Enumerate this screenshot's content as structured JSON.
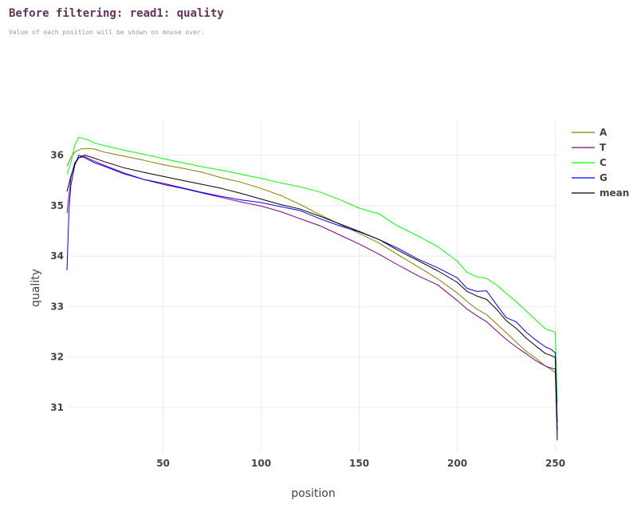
{
  "header": {
    "title": "Before filtering: read1: quality",
    "subtitle": "Value of each position will be shown on mouse over."
  },
  "chart_data": {
    "type": "line",
    "xlabel": "position",
    "ylabel": "quality",
    "xlim": [
      1,
      251
    ],
    "ylim": [
      30.2,
      36.7
    ],
    "xticks": [
      50,
      100,
      150,
      200,
      250
    ],
    "yticks": [
      31,
      32,
      33,
      34,
      35,
      36
    ],
    "grid": true,
    "legend": "right",
    "series": [
      {
        "name": "A",
        "color": "#808000",
        "points": [
          [
            1,
            35.78
          ],
          [
            3,
            35.95
          ],
          [
            5,
            36.06
          ],
          [
            8,
            36.12
          ],
          [
            10,
            36.13
          ],
          [
            12,
            36.13
          ],
          [
            15,
            36.12
          ],
          [
            20,
            36.06
          ],
          [
            30,
            35.98
          ],
          [
            40,
            35.9
          ],
          [
            50,
            35.81
          ],
          [
            60,
            35.74
          ],
          [
            70,
            35.66
          ],
          [
            80,
            35.55
          ],
          [
            90,
            35.46
          ],
          [
            100,
            35.34
          ],
          [
            110,
            35.2
          ],
          [
            120,
            35.02
          ],
          [
            130,
            34.82
          ],
          [
            140,
            34.63
          ],
          [
            150,
            34.45
          ],
          [
            160,
            34.26
          ],
          [
            170,
            34.02
          ],
          [
            180,
            33.79
          ],
          [
            190,
            33.55
          ],
          [
            200,
            33.27
          ],
          [
            205,
            33.1
          ],
          [
            210,
            32.95
          ],
          [
            215,
            32.84
          ],
          [
            220,
            32.66
          ],
          [
            225,
            32.48
          ],
          [
            230,
            32.3
          ],
          [
            235,
            32.12
          ],
          [
            240,
            31.98
          ],
          [
            245,
            31.82
          ],
          [
            248,
            31.75
          ],
          [
            250,
            31.69
          ],
          [
            251,
            30.44
          ]
        ]
      },
      {
        "name": "T",
        "color": "#800080",
        "points": [
          [
            1,
            34.85
          ],
          [
            2,
            35.2
          ],
          [
            3,
            35.55
          ],
          [
            5,
            35.85
          ],
          [
            7,
            35.95
          ],
          [
            10,
            35.97
          ],
          [
            15,
            35.88
          ],
          [
            20,
            35.8
          ],
          [
            30,
            35.65
          ],
          [
            40,
            35.52
          ],
          [
            50,
            35.42
          ],
          [
            60,
            35.34
          ],
          [
            70,
            35.25
          ],
          [
            80,
            35.16
          ],
          [
            90,
            35.07
          ],
          [
            100,
            34.99
          ],
          [
            110,
            34.88
          ],
          [
            120,
            34.74
          ],
          [
            130,
            34.6
          ],
          [
            140,
            34.42
          ],
          [
            150,
            34.24
          ],
          [
            160,
            34.04
          ],
          [
            170,
            33.82
          ],
          [
            180,
            33.61
          ],
          [
            190,
            33.43
          ],
          [
            200,
            33.12
          ],
          [
            205,
            32.95
          ],
          [
            210,
            32.82
          ],
          [
            215,
            32.7
          ],
          [
            220,
            32.52
          ],
          [
            225,
            32.35
          ],
          [
            230,
            32.2
          ],
          [
            235,
            32.07
          ],
          [
            240,
            31.93
          ],
          [
            245,
            31.82
          ],
          [
            248,
            31.78
          ],
          [
            250,
            31.76
          ],
          [
            251,
            30.55
          ]
        ]
      },
      {
        "name": "C",
        "color": "#00ff00",
        "points": [
          [
            1,
            35.62
          ],
          [
            3,
            35.85
          ],
          [
            5,
            36.2
          ],
          [
            7,
            36.35
          ],
          [
            10,
            36.32
          ],
          [
            12,
            36.3
          ],
          [
            15,
            36.24
          ],
          [
            20,
            36.19
          ],
          [
            30,
            36.1
          ],
          [
            40,
            36.02
          ],
          [
            50,
            35.93
          ],
          [
            60,
            35.85
          ],
          [
            70,
            35.77
          ],
          [
            80,
            35.7
          ],
          [
            90,
            35.62
          ],
          [
            100,
            35.54
          ],
          [
            110,
            35.45
          ],
          [
            120,
            35.37
          ],
          [
            130,
            35.27
          ],
          [
            140,
            35.12
          ],
          [
            150,
            34.95
          ],
          [
            160,
            34.84
          ],
          [
            170,
            34.59
          ],
          [
            180,
            34.4
          ],
          [
            190,
            34.19
          ],
          [
            200,
            33.9
          ],
          [
            205,
            33.68
          ],
          [
            210,
            33.59
          ],
          [
            215,
            33.56
          ],
          [
            220,
            33.43
          ],
          [
            225,
            33.26
          ],
          [
            230,
            33.1
          ],
          [
            235,
            32.92
          ],
          [
            240,
            32.74
          ],
          [
            245,
            32.56
          ],
          [
            248,
            32.52
          ],
          [
            250,
            32.49
          ],
          [
            251,
            31.1
          ]
        ]
      },
      {
        "name": "G",
        "color": "#0000ff",
        "points": [
          [
            1,
            33.72
          ],
          [
            2,
            34.9
          ],
          [
            3,
            35.4
          ],
          [
            5,
            35.8
          ],
          [
            7,
            36.0
          ],
          [
            10,
            35.95
          ],
          [
            15,
            35.85
          ],
          [
            20,
            35.78
          ],
          [
            30,
            35.63
          ],
          [
            40,
            35.52
          ],
          [
            50,
            35.44
          ],
          [
            60,
            35.35
          ],
          [
            70,
            35.26
          ],
          [
            80,
            35.18
          ],
          [
            90,
            35.11
          ],
          [
            100,
            35.06
          ],
          [
            110,
            34.98
          ],
          [
            120,
            34.9
          ],
          [
            130,
            34.74
          ],
          [
            140,
            34.6
          ],
          [
            150,
            34.48
          ],
          [
            160,
            34.33
          ],
          [
            170,
            34.15
          ],
          [
            180,
            33.94
          ],
          [
            190,
            33.77
          ],
          [
            200,
            33.57
          ],
          [
            205,
            33.36
          ],
          [
            210,
            33.3
          ],
          [
            215,
            33.31
          ],
          [
            220,
            33.04
          ],
          [
            225,
            32.78
          ],
          [
            230,
            32.7
          ],
          [
            235,
            32.5
          ],
          [
            240,
            32.34
          ],
          [
            245,
            32.2
          ],
          [
            248,
            32.15
          ],
          [
            250,
            32.08
          ],
          [
            251,
            30.7
          ]
        ]
      },
      {
        "name": "mean",
        "color": "#000000",
        "points": [
          [
            1,
            35.28
          ],
          [
            3,
            35.58
          ],
          [
            5,
            35.82
          ],
          [
            7,
            35.95
          ],
          [
            10,
            36.0
          ],
          [
            15,
            35.94
          ],
          [
            20,
            35.87
          ],
          [
            30,
            35.75
          ],
          [
            40,
            35.66
          ],
          [
            50,
            35.58
          ],
          [
            60,
            35.5
          ],
          [
            70,
            35.42
          ],
          [
            80,
            35.34
          ],
          [
            90,
            35.24
          ],
          [
            100,
            35.13
          ],
          [
            110,
            35.02
          ],
          [
            120,
            34.93
          ],
          [
            130,
            34.79
          ],
          [
            140,
            34.64
          ],
          [
            150,
            34.49
          ],
          [
            160,
            34.33
          ],
          [
            170,
            34.11
          ],
          [
            180,
            33.91
          ],
          [
            190,
            33.71
          ],
          [
            200,
            33.48
          ],
          [
            205,
            33.3
          ],
          [
            210,
            33.21
          ],
          [
            215,
            33.14
          ],
          [
            220,
            32.95
          ],
          [
            225,
            32.72
          ],
          [
            230,
            32.57
          ],
          [
            235,
            32.38
          ],
          [
            240,
            32.22
          ],
          [
            245,
            32.07
          ],
          [
            248,
            32.03
          ],
          [
            250,
            31.99
          ],
          [
            251,
            30.35
          ]
        ]
      }
    ]
  }
}
